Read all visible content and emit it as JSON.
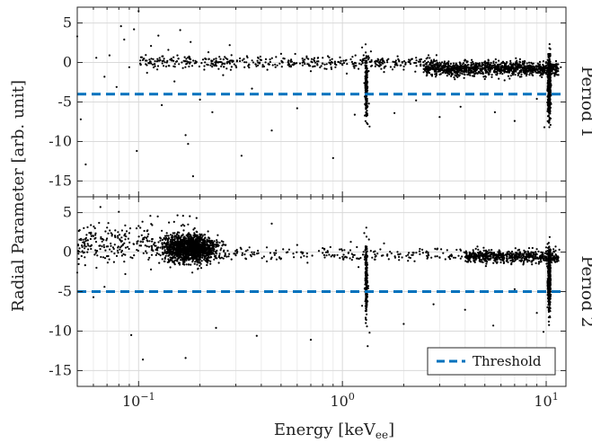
{
  "chart_data": {
    "type": "scatter",
    "xlabel_main": "Energy [keV",
    "xlabel_sub": "ee",
    "xlabel_close": "]",
    "ylabel": "Radial Parameter [arb. unit]",
    "x_scale": "log",
    "xlim": [
      0.05,
      12.5
    ],
    "x_ticks": [
      {
        "value": 0.1,
        "base": "10",
        "exp": "−1"
      },
      {
        "value": 1,
        "base": "10",
        "exp": "0"
      },
      {
        "value": 10,
        "base": "10",
        "exp": "1"
      }
    ],
    "grid": true,
    "legend": {
      "position": "bottom-right",
      "entries": [
        {
          "label": "Threshold",
          "color": "#0072BD",
          "style": "dashed"
        }
      ]
    },
    "marker_color": "#000000",
    "threshold_color": "#0072BD",
    "panels": [
      {
        "label": "Period 1",
        "ylim": [
          -17,
          7
        ],
        "y_ticks": [
          "5",
          "0",
          "-5",
          "-10",
          "-15"
        ],
        "y_tick_values": [
          5,
          0,
          -5,
          -10,
          -15
        ],
        "threshold": -4,
        "points": [
          [
            0.05,
            3.3
          ],
          [
            0.052,
            -7.2
          ],
          [
            0.055,
            -12.9
          ],
          [
            0.062,
            0.6
          ],
          [
            0.068,
            -1.8
          ],
          [
            0.072,
            0.9
          ],
          [
            0.078,
            -3.1
          ],
          [
            0.082,
            4.6
          ],
          [
            0.085,
            2.9
          ],
          [
            0.09,
            -0.6
          ],
          [
            0.095,
            4.2
          ],
          [
            0.098,
            -11.2
          ],
          [
            0.1,
            6.5
          ],
          [
            0.105,
            0.3
          ],
          [
            0.11,
            -1.3
          ],
          [
            0.115,
            2.1
          ],
          [
            0.12,
            -0.2
          ],
          [
            0.125,
            3.4
          ],
          [
            0.13,
            -5.4
          ],
          [
            0.14,
            1.6
          ],
          [
            0.15,
            -2.4
          ],
          [
            0.155,
            0.9
          ],
          [
            0.16,
            4.1
          ],
          [
            0.165,
            -0.7
          ],
          [
            0.17,
            -9.2
          ],
          [
            0.175,
            -10.3
          ],
          [
            0.18,
            2.6
          ],
          [
            0.185,
            -14.4
          ],
          [
            0.19,
            0.2
          ],
          [
            0.2,
            -4.7
          ],
          [
            0.21,
            -0.9
          ],
          [
            0.22,
            1.3
          ],
          [
            0.23,
            -6.3
          ],
          [
            0.24,
            0.5
          ],
          [
            0.26,
            -1.6
          ],
          [
            0.28,
            2.2
          ],
          [
            0.3,
            -0.4
          ],
          [
            0.32,
            -11.8
          ],
          [
            0.34,
            0.8
          ],
          [
            0.36,
            -3.3
          ],
          [
            0.4,
            0.3
          ],
          [
            0.45,
            -8.6
          ],
          [
            0.5,
            1.1
          ],
          [
            0.55,
            -0.5
          ],
          [
            0.6,
            -5.8
          ],
          [
            0.7,
            -1.1
          ],
          [
            0.8,
            0.6
          ],
          [
            0.9,
            -12.1
          ],
          [
            1.0,
            -0.3
          ],
          [
            1.05,
            -1.4
          ],
          [
            1.1,
            0.4
          ],
          [
            1.15,
            -6.6
          ],
          [
            1.2,
            -0.8
          ],
          [
            1.25,
            1.9
          ],
          [
            1.28,
            -2.6
          ],
          [
            1.3,
            2.3
          ],
          [
            1.31,
            -4.6
          ],
          [
            1.32,
            -6.1
          ],
          [
            1.33,
            -7.8
          ],
          [
            1.34,
            0.8
          ],
          [
            1.35,
            -5.2
          ],
          [
            1.36,
            -8.1
          ],
          [
            1.38,
            1.4
          ],
          [
            1.45,
            -0.5
          ],
          [
            1.6,
            -1.2
          ],
          [
            1.8,
            -6.4
          ],
          [
            2.0,
            -0.9
          ],
          [
            2.3,
            -4.8
          ],
          [
            2.6,
            -1.6
          ],
          [
            3.0,
            -6.9
          ],
          [
            3.3,
            -0.7
          ],
          [
            3.8,
            -5.6
          ],
          [
            4.2,
            -1.3
          ],
          [
            5.0,
            -2.1
          ],
          [
            5.6,
            -6.3
          ],
          [
            6.3,
            -0.8
          ],
          [
            7.0,
            -7.4
          ],
          [
            8.0,
            -1.5
          ],
          [
            9.0,
            -4.6
          ],
          [
            9.8,
            -8.2
          ],
          [
            10.1,
            -1.2
          ],
          [
            10.2,
            -6.8
          ],
          [
            10.3,
            -2.3
          ],
          [
            10.4,
            0.9
          ],
          [
            10.5,
            -7.9
          ],
          [
            11.0,
            -1.7
          ],
          [
            11.8,
            -0.6
          ]
        ]
      },
      {
        "label": "Period 2",
        "ylim": [
          -17,
          7
        ],
        "y_ticks": [
          "5",
          "0",
          "-5",
          "-10",
          "-15"
        ],
        "y_tick_values": [
          5,
          0,
          -5,
          -10,
          -15
        ],
        "threshold": -5,
        "points": [
          [
            0.05,
            -2.6
          ],
          [
            0.055,
            1.4
          ],
          [
            0.06,
            -5.7
          ],
          [
            0.065,
            5.7
          ],
          [
            0.068,
            -4.4
          ],
          [
            0.07,
            3.1
          ],
          [
            0.075,
            0.6
          ],
          [
            0.08,
            5.1
          ],
          [
            0.085,
            -1.2
          ],
          [
            0.09,
            2.4
          ],
          [
            0.092,
            -10.5
          ],
          [
            0.095,
            -0.4
          ],
          [
            0.1,
            3.3
          ],
          [
            0.105,
            -13.6
          ],
          [
            0.11,
            1.5
          ],
          [
            0.115,
            -2.2
          ],
          [
            0.12,
            0.8
          ],
          [
            0.13,
            2.7
          ],
          [
            0.14,
            -0.9
          ],
          [
            0.15,
            1.9
          ],
          [
            0.16,
            0.4
          ],
          [
            0.17,
            -13.4
          ],
          [
            0.175,
            3.5
          ],
          [
            0.18,
            -1.6
          ],
          [
            0.19,
            1.1
          ],
          [
            0.2,
            0.3
          ],
          [
            0.21,
            2.2
          ],
          [
            0.22,
            -0.6
          ],
          [
            0.24,
            -9.6
          ],
          [
            0.26,
            1.3
          ],
          [
            0.3,
            -0.4
          ],
          [
            0.35,
            0.6
          ],
          [
            0.38,
            -10.6
          ],
          [
            0.45,
            3.6
          ],
          [
            0.5,
            -0.8
          ],
          [
            0.6,
            0.9
          ],
          [
            0.7,
            -11.1
          ],
          [
            0.8,
            0.5
          ],
          [
            1.0,
            -0.6
          ],
          [
            1.1,
            1.3
          ],
          [
            1.2,
            -1.9
          ],
          [
            1.25,
            -6.8
          ],
          [
            1.28,
            2.4
          ],
          [
            1.3,
            -8.3
          ],
          [
            1.31,
            3.1
          ],
          [
            1.32,
            -9.4
          ],
          [
            1.33,
            -11.9
          ],
          [
            1.34,
            -4.3
          ],
          [
            1.35,
            1.6
          ],
          [
            1.36,
            -10.2
          ],
          [
            1.4,
            -0.7
          ],
          [
            1.6,
            1.1
          ],
          [
            2.0,
            -9.1
          ],
          [
            2.4,
            0.4
          ],
          [
            2.8,
            -6.6
          ],
          [
            3.2,
            -0.9
          ],
          [
            4.0,
            -7.3
          ],
          [
            4.6,
            0.7
          ],
          [
            5.5,
            -9.3
          ],
          [
            6.2,
            -1.4
          ],
          [
            7.0,
            -4.7
          ],
          [
            8.0,
            -0.6
          ],
          [
            9.0,
            -7.7
          ],
          [
            9.7,
            -10.1
          ],
          [
            10.0,
            0.6
          ],
          [
            10.2,
            -3.6
          ],
          [
            10.3,
            -8.8
          ],
          [
            10.4,
            1.9
          ],
          [
            10.5,
            -5.9
          ],
          [
            11.0,
            -1.1
          ],
          [
            11.6,
            0.3
          ]
        ]
      }
    ]
  }
}
